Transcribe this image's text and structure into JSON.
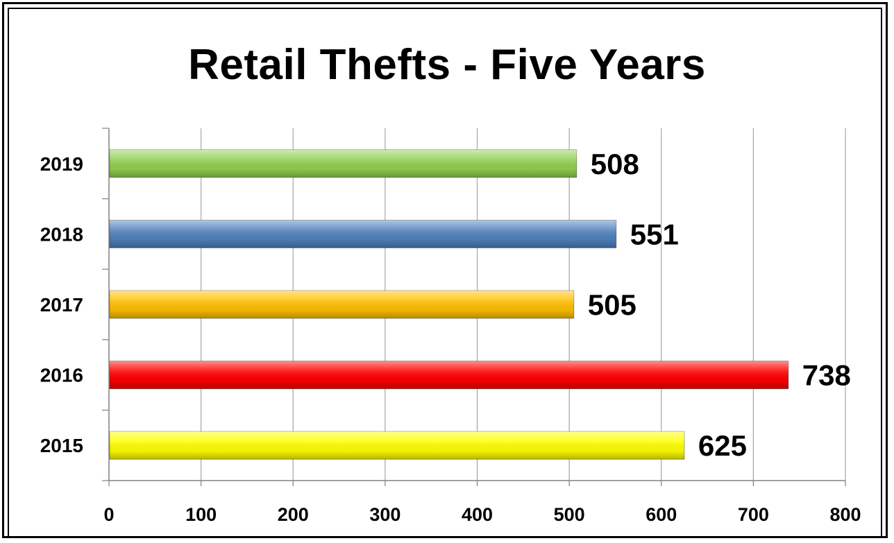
{
  "chart_data": {
    "type": "bar",
    "orientation": "horizontal",
    "title": "Retail Thefts - Five Years",
    "categories": [
      "2019",
      "2018",
      "2017",
      "2016",
      "2015"
    ],
    "values": [
      508,
      551,
      505,
      738,
      625
    ],
    "data_labels": [
      "508",
      "551",
      "505",
      "738",
      "625"
    ],
    "bar_colors": [
      "#92d050",
      "#4f81bd",
      "#ffc000",
      "#ff0000",
      "#ffff00"
    ],
    "xlim": [
      0,
      800
    ],
    "xticks": [
      0,
      100,
      200,
      300,
      400,
      500,
      600,
      700,
      800
    ],
    "xtick_labels": [
      "0",
      "100",
      "200",
      "300",
      "400",
      "500",
      "600",
      "700",
      "800"
    ],
    "grid": "vertical",
    "legend": "none"
  }
}
